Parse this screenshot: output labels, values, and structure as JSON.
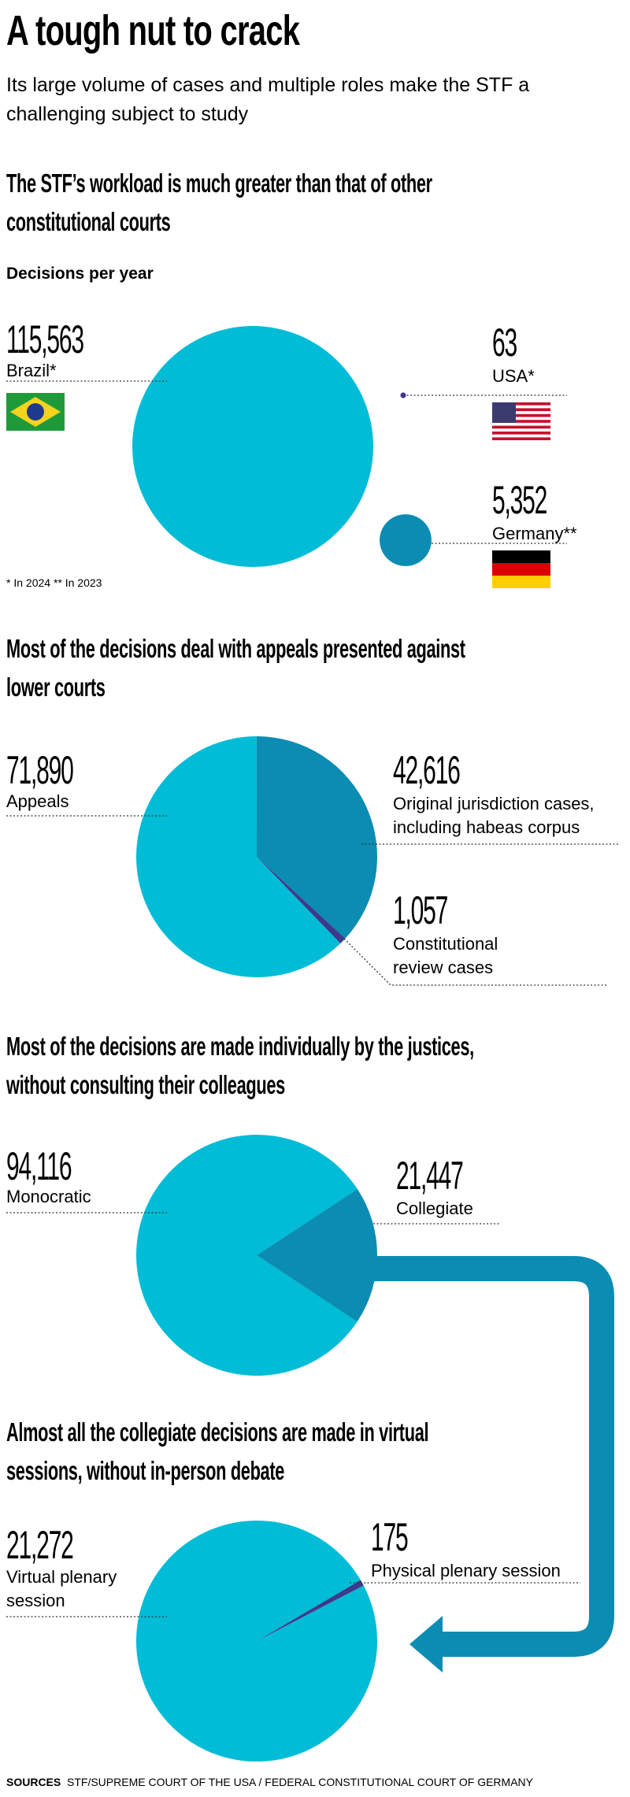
{
  "title": "A tough nut to crack",
  "subtitle": "Its large volume of cases and multiple roles make the STF a challenging subject to study",
  "sources_label": "SOURCES",
  "sources": "STF/SUPREME COURT OF THE USA / FEDERAL CONSTITUTIONAL COURT OF GERMANY",
  "chart_data": [
    {
      "type": "bubble",
      "title": "The STF’s workload is much greater than that of other constitutional courts",
      "subtitle": "Decisions per year",
      "categories": [
        "Brazil*",
        "USA*",
        "Germany**"
      ],
      "values": [
        115563,
        63,
        5352
      ],
      "value_labels": [
        "115,563",
        "63",
        "5,352"
      ],
      "colors": [
        "#00bcd6",
        "#3d3a8c",
        "#0b8cb3"
      ],
      "note": "* In 2024 ** In 2023"
    },
    {
      "type": "pie",
      "title": "Most of the decisions deal with appeals presented against lower courts",
      "categories": [
        "Appeals",
        "Original jurisdiction cases, including habeas corpus",
        "Constitutional review cases"
      ],
      "values": [
        71890,
        42616,
        1057
      ],
      "value_labels": [
        "71,890",
        "42,616",
        "1,057"
      ],
      "colors": [
        "#00bcd6",
        "#0b8cb3",
        "#3d3a8c"
      ]
    },
    {
      "type": "pie",
      "title": "Most of the decisions are made individually by the justices, without consulting their colleagues",
      "categories": [
        "Monocratic",
        "Collegiate"
      ],
      "values": [
        94116,
        21447
      ],
      "value_labels": [
        "94,116",
        "21,447"
      ],
      "colors": [
        "#00bcd6",
        "#0b8cb3"
      ]
    },
    {
      "type": "pie",
      "title": "Almost all the collegiate decisions are made in virtual sessions, without in-person debate",
      "categories": [
        "Virtual plenary session",
        "Physical plenary session"
      ],
      "values": [
        21272,
        175
      ],
      "value_labels": [
        "21,272",
        "175"
      ],
      "colors": [
        "#00bcd6",
        "#3d3a8c"
      ]
    }
  ]
}
